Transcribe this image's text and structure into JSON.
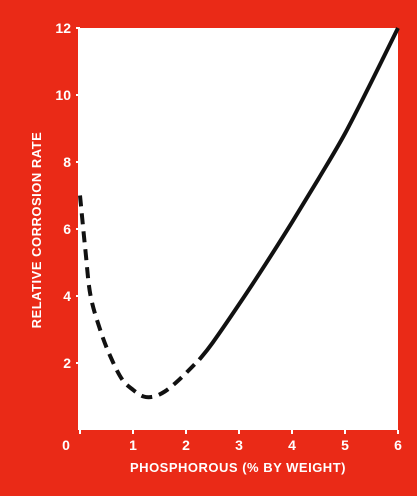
{
  "colors": {
    "background": "#ea2a17",
    "plot_area": "#ffffff",
    "line": "#111111",
    "text": "#ffffff"
  },
  "chart_data": {
    "type": "line",
    "title": "",
    "xlabel": "PHOSPHOROUS (% BY WEIGHT)",
    "ylabel": "RELATIVE CORROSION RATE",
    "xlim": [
      0,
      6
    ],
    "ylim": [
      0,
      12
    ],
    "x_ticks": [
      "0",
      "1",
      "2",
      "3",
      "4",
      "5",
      "6"
    ],
    "y_ticks": [
      "2",
      "4",
      "6",
      "8",
      "10",
      "12"
    ],
    "grid": false,
    "series": [
      {
        "style": "dashed",
        "x": [
          0.0,
          0.1,
          0.2,
          0.4,
          0.6,
          0.8,
          1.0,
          1.2,
          1.4,
          1.6,
          1.8,
          2.0,
          2.25
        ],
        "y": [
          7.0,
          5.4,
          4.0,
          2.9,
          2.1,
          1.5,
          1.2,
          1.0,
          1.0,
          1.15,
          1.4,
          1.7,
          2.1
        ]
      },
      {
        "style": "solid",
        "x": [
          2.25,
          2.5,
          3.0,
          3.5,
          4.0,
          4.5,
          5.0,
          5.5,
          6.0
        ],
        "y": [
          2.1,
          2.6,
          3.75,
          4.95,
          6.2,
          7.5,
          8.85,
          10.4,
          12.0
        ]
      }
    ]
  }
}
